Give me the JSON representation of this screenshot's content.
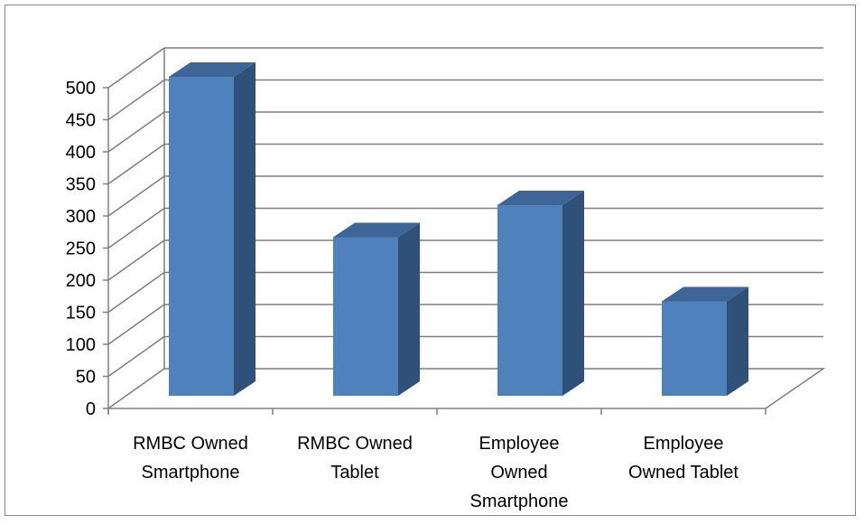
{
  "chart_data": {
    "type": "bar",
    "title": "",
    "xlabel": "",
    "ylabel": "",
    "categories": [
      [
        "RMBC Owned",
        "Smartphone"
      ],
      [
        "RMBC Owned",
        "Tablet"
      ],
      [
        "Employee",
        "Owned",
        "Smartphone"
      ],
      [
        "Employee",
        "Owned Tablet"
      ]
    ],
    "values": [
      500,
      250,
      300,
      150
    ],
    "ylim": [
      0,
      500
    ],
    "yticks": [
      0,
      50,
      100,
      150,
      200,
      250,
      300,
      350,
      400,
      450,
      500
    ],
    "grid": true,
    "legend": "none",
    "style": "3d-column",
    "colors": {
      "bar_front": "#4f81bd",
      "bar_side": "#2f5079",
      "bar_top": "#3d6598",
      "grid": "#7f7f7f",
      "axis": "#808080"
    }
  }
}
